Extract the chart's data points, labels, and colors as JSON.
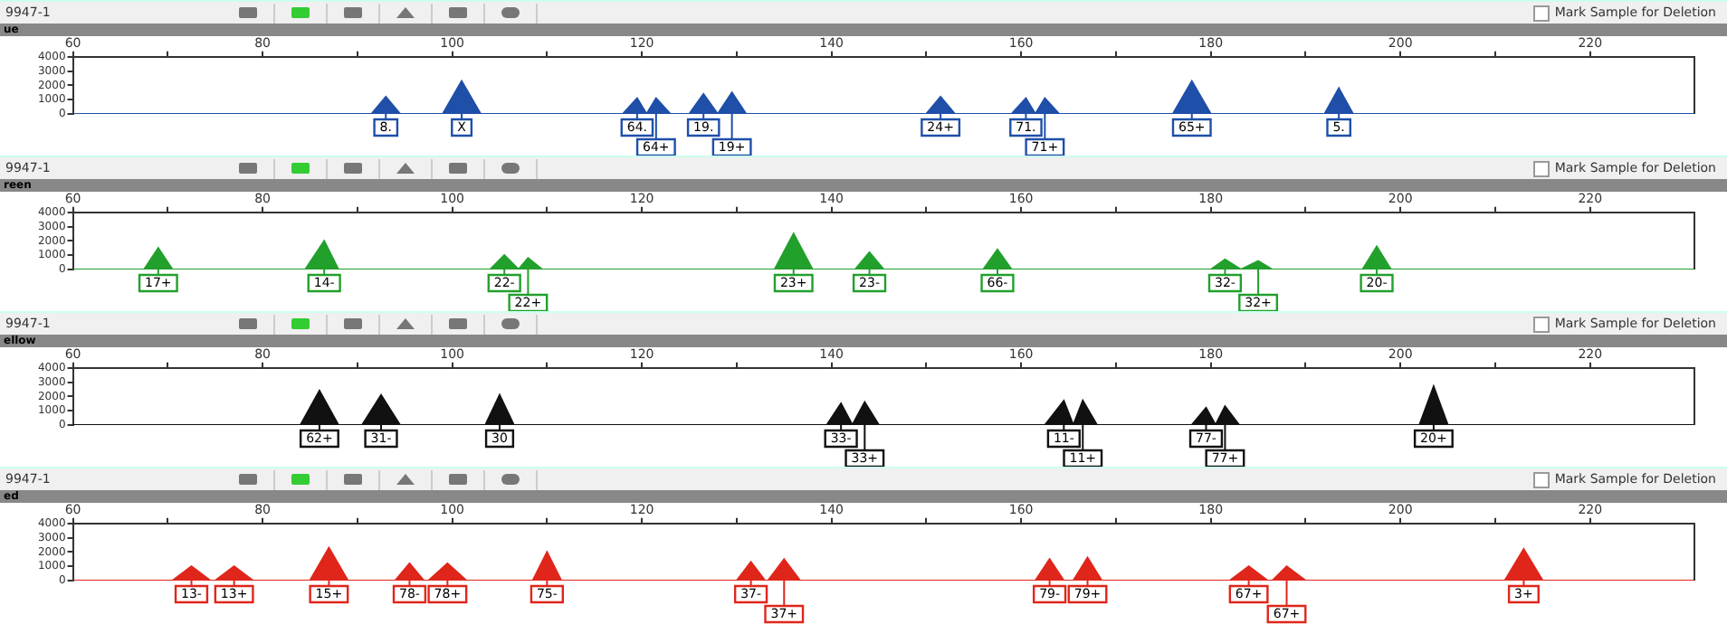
{
  "chart_data": [
    {
      "type": "area",
      "title": "9947-1",
      "subtitle": "ue",
      "color": "#1f4fa8",
      "marker": "none",
      "xlim": [
        60,
        231
      ],
      "ylim": [
        0,
        4000
      ],
      "xticks": [
        60,
        {
          "value": 70,
          "label": null
        },
        80,
        {
          "value": 90,
          "label": null
        },
        100,
        {
          "value": 110,
          "label": null
        },
        120,
        {
          "value": 130,
          "label": null
        },
        140,
        {
          "value": 150,
          "label": null
        },
        160,
        {
          "value": 170,
          "label": null
        },
        180,
        {
          "value": 190,
          "label": null
        },
        200,
        {
          "value": 210,
          "label": null
        },
        220
      ],
      "yticks": [
        0,
        1000,
        2000,
        3000,
        4000
      ],
      "x": [
        60,
        91.5,
        93,
        94.5,
        99,
        101,
        103,
        118,
        119.5,
        120.5,
        121.5,
        123,
        125,
        126.5,
        128,
        129.5,
        131,
        150,
        151.5,
        153,
        159,
        160.5,
        161.5,
        162.5,
        164,
        176,
        178,
        180,
        192,
        193.5,
        195,
        231
      ],
      "values": [
        0,
        0,
        1200,
        0,
        0,
        2300,
        0,
        0,
        1100,
        0,
        1100,
        0,
        0,
        1400,
        0,
        1500,
        0,
        0,
        1200,
        0,
        0,
        1100,
        0,
        1100,
        0,
        0,
        2300,
        0,
        0,
        1800,
        0,
        0
      ],
      "annotations": [
        "Mark Sample for Deletion",
        {
          "text": "8.",
          "x": 93,
          "y": 0
        },
        {
          "text": "X",
          "x": 101,
          "y": 0
        },
        {
          "text": "64.",
          "x": 119.5,
          "y": 0
        },
        {
          "text": "64+",
          "x": 121.5,
          "y": 0
        },
        {
          "text": "19.",
          "x": 126.5,
          "y": 0
        },
        {
          "text": "19+",
          "x": 129.5,
          "y": 0
        },
        {
          "text": "24+",
          "x": 151.5,
          "y": 0
        },
        {
          "text": "71.",
          "x": 160.5,
          "y": 0
        },
        {
          "text": "71+",
          "x": 162.5,
          "y": 0
        },
        {
          "text": "65+",
          "x": 178,
          "y": 0
        },
        {
          "text": "5.",
          "x": 193.5,
          "y": 0
        }
      ]
    },
    {
      "type": "area",
      "title": "9947-1",
      "subtitle": "reen",
      "color": "#22a02c",
      "marker": "none",
      "xlim": [
        60,
        231
      ],
      "ylim": [
        0,
        4000
      ],
      "xticks": [
        60,
        {
          "value": 70,
          "label": null
        },
        80,
        {
          "value": 90,
          "label": null
        },
        100,
        {
          "value": 110,
          "label": null
        },
        120,
        {
          "value": 130,
          "label": null
        },
        140,
        {
          "value": 150,
          "label": null
        },
        160,
        {
          "value": 170,
          "label": null
        },
        180,
        {
          "value": 190,
          "label": null
        },
        200,
        {
          "value": 210,
          "label": null
        },
        220
      ],
      "yticks": [
        0,
        1000,
        2000,
        3000,
        4000
      ],
      "x": [
        60,
        67.5,
        69,
        70.5,
        84.5,
        86.5,
        88,
        104,
        105.5,
        107,
        108,
        109.5,
        134,
        136,
        138,
        142.5,
        144,
        145.5,
        156,
        157.5,
        159,
        180,
        181.5,
        183.2,
        185,
        186.5,
        196,
        197.5,
        199,
        231
      ],
      "values": [
        0,
        0,
        1500,
        0,
        0,
        2000,
        0,
        0,
        1000,
        0,
        800,
        0,
        0,
        2500,
        0,
        0,
        1200,
        0,
        0,
        1400,
        0,
        0,
        700,
        0,
        600,
        0,
        0,
        1600,
        0,
        0
      ],
      "annotations": [
        "Mark Sample for Deletion",
        {
          "text": "17+",
          "x": 69,
          "y": 0
        },
        {
          "text": "14-",
          "x": 86.5,
          "y": 0
        },
        {
          "text": "22-",
          "x": 105.5,
          "y": 0
        },
        {
          "text": "22+",
          "x": 108,
          "y": 0
        },
        {
          "text": "23+",
          "x": 136,
          "y": 0
        },
        {
          "text": "23-",
          "x": 144,
          "y": 0
        },
        {
          "text": "66-",
          "x": 157.5,
          "y": 0
        },
        {
          "text": "32-",
          "x": 181.5,
          "y": 0
        },
        {
          "text": "32+",
          "x": 185,
          "y": 0
        },
        {
          "text": "20-",
          "x": 197.5,
          "y": 0
        }
      ]
    },
    {
      "type": "area",
      "title": "9947-1",
      "subtitle": "ellow",
      "color": "#111111",
      "marker": "none",
      "xlim": [
        60,
        231
      ],
      "ylim": [
        0,
        4000
      ],
      "xticks": [
        60,
        {
          "value": 70,
          "label": null
        },
        80,
        {
          "value": 90,
          "label": null
        },
        100,
        {
          "value": 110,
          "label": null
        },
        120,
        {
          "value": 130,
          "label": null
        },
        140,
        {
          "value": 150,
          "label": null
        },
        160,
        {
          "value": 170,
          "label": null
        },
        180,
        {
          "value": 190,
          "label": null
        },
        200,
        {
          "value": 210,
          "label": null
        },
        220
      ],
      "yticks": [
        0,
        1000,
        2000,
        3000,
        4000
      ],
      "x": [
        60,
        84,
        86,
        88,
        90.5,
        92.5,
        94.5,
        103.5,
        105,
        106.5,
        139.5,
        141,
        142.2,
        143.5,
        145,
        162.5,
        164.5,
        165.5,
        166.5,
        168,
        178,
        179.5,
        180.5,
        181.5,
        183,
        202,
        203.5,
        205,
        231
      ],
      "values": [
        0,
        0,
        2400,
        0,
        0,
        2100,
        0,
        0,
        2100,
        0,
        0,
        1500,
        0,
        1600,
        0,
        0,
        1700,
        0,
        1700,
        0,
        0,
        1200,
        0,
        1300,
        0,
        0,
        2700,
        0,
        0
      ],
      "annotations": [
        "Mark Sample for Deletion",
        {
          "text": "62+",
          "x": 86,
          "y": 0
        },
        {
          "text": "31-",
          "x": 92.5,
          "y": 0
        },
        {
          "text": "30",
          "x": 105,
          "y": 0
        },
        {
          "text": "33-",
          "x": 141,
          "y": 0
        },
        {
          "text": "33+",
          "x": 143.5,
          "y": 0
        },
        {
          "text": "11-",
          "x": 164.5,
          "y": 0
        },
        {
          "text": "11+",
          "x": 166.5,
          "y": 0
        },
        {
          "text": "77-",
          "x": 179.5,
          "y": 0
        },
        {
          "text": "77+",
          "x": 181.5,
          "y": 0
        },
        {
          "text": "20+",
          "x": 203.5,
          "y": 0
        }
      ]
    },
    {
      "type": "area",
      "title": "9947-1",
      "subtitle": "ed",
      "color": "#e0261b",
      "marker": "none",
      "xlim": [
        60,
        231
      ],
      "ylim": [
        0,
        4000
      ],
      "xticks": [
        60,
        {
          "value": 70,
          "label": null
        },
        80,
        {
          "value": 90,
          "label": null
        },
        100,
        {
          "value": 110,
          "label": null
        },
        120,
        {
          "value": 130,
          "label": null
        },
        140,
        {
          "value": 150,
          "label": null
        },
        160,
        {
          "value": 170,
          "label": null
        },
        180,
        {
          "value": 190,
          "label": null
        },
        200,
        {
          "value": 210,
          "label": null
        },
        220
      ],
      "yticks": [
        0,
        1000,
        2000,
        3000,
        4000
      ],
      "x": [
        60,
        70.5,
        72.5,
        74.5,
        75,
        77,
        79,
        85,
        87,
        89,
        94,
        95.5,
        97,
        97.5,
        99.5,
        101.5,
        108.5,
        110,
        111.5,
        130,
        131.5,
        133,
        133.3,
        135,
        136.7,
        161.5,
        163,
        164.5,
        165.5,
        167,
        168.5,
        182,
        184,
        186,
        186.5,
        188,
        190,
        211,
        213,
        215,
        231
      ],
      "values": [
        0,
        0,
        1000,
        0,
        0,
        1000,
        0,
        0,
        2300,
        0,
        0,
        1200,
        0,
        0,
        1200,
        0,
        0,
        2000,
        0,
        0,
        1300,
        0,
        0,
        1500,
        0,
        0,
        1500,
        0,
        0,
        1600,
        0,
        0,
        1000,
        0,
        0,
        1000,
        0,
        0,
        2200,
        0,
        0
      ],
      "annotations": [
        "Mark Sample for Deletion",
        {
          "text": "13-",
          "x": 72.5,
          "y": 0
        },
        {
          "text": "13+",
          "x": 77,
          "y": 0
        },
        {
          "text": "15+",
          "x": 87,
          "y": 0
        },
        {
          "text": "78-",
          "x": 95.5,
          "y": 0
        },
        {
          "text": "78+",
          "x": 99.5,
          "y": 0
        },
        {
          "text": "75-",
          "x": 110,
          "y": 0
        },
        {
          "text": "37-",
          "x": 131.5,
          "y": 0
        },
        {
          "text": "37+",
          "x": 135,
          "y": 0
        },
        {
          "text": "79-",
          "x": 163,
          "y": 0
        },
        {
          "text": "79+",
          "x": 167,
          "y": 0
        },
        {
          "text": "67+",
          "x": 184,
          "y": 0
        },
        {
          "text": "67+",
          "x": 188,
          "y": 0
        },
        {
          "text": "3+",
          "x": 213,
          "y": 0
        }
      ]
    }
  ]
}
